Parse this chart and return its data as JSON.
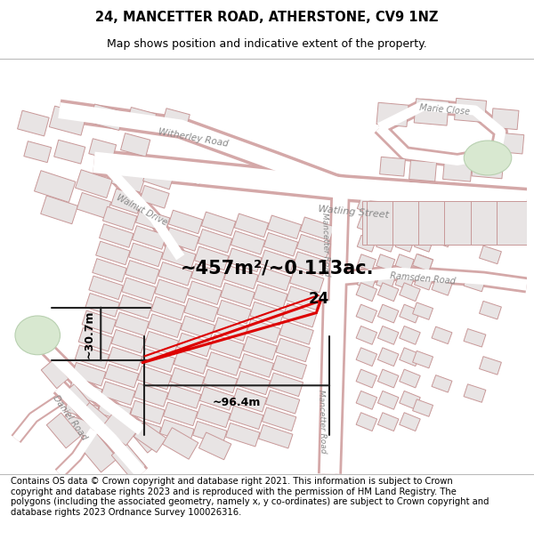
{
  "title_line1": "24, MANCETTER ROAD, ATHERSTONE, CV9 1NZ",
  "title_line2": "Map shows position and indicative extent of the property.",
  "footer_text": "Contains OS data © Crown copyright and database right 2021. This information is subject to Crown copyright and database rights 2023 and is reproduced with the permission of HM Land Registry. The polygons (including the associated geometry, namely x, y co-ordinates) are subject to Crown copyright and database rights 2023 Ordnance Survey 100026316.",
  "area_label": "~457m²/~0.113ac.",
  "width_label": "~96.4m",
  "height_label": "~30.7m",
  "number_label": "24",
  "map_bg": "#f2efef",
  "road_outline": "#d4a8a8",
  "building_fill": "#e8e4e4",
  "building_edge": "#c89898",
  "highlight_color": "#dd0000",
  "line_color": "#222222",
  "title_fontsize": 10.5,
  "subtitle_fontsize": 9,
  "footer_fontsize": 7.2,
  "road_label_color": "#888888",
  "road_label_size": 7.5
}
